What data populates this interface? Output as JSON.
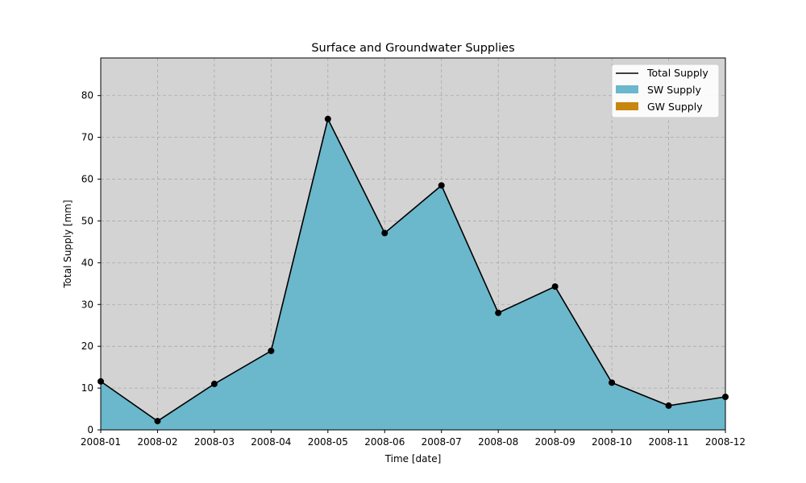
{
  "chart_data": {
    "type": "area",
    "title": "Surface and Groundwater Supplies",
    "xlabel": "Time [date]",
    "ylabel": "Total Supply [mm]",
    "x": [
      "2008-01",
      "2008-02",
      "2008-03",
      "2008-04",
      "2008-05",
      "2008-06",
      "2008-07",
      "2008-08",
      "2008-09",
      "2008-10",
      "2008-11",
      "2008-12"
    ],
    "xlim": [
      "2008-01",
      "2008-12"
    ],
    "ylim": [
      0,
      89
    ],
    "yticks": [
      0,
      10,
      20,
      30,
      40,
      50,
      60,
      70,
      80
    ],
    "grid": true,
    "legend_position": "top-right",
    "series": [
      {
        "name": "Total Supply",
        "kind": "line",
        "color": "#000000",
        "values": [
          11.6,
          2.1,
          11.0,
          18.9,
          74.4,
          47.1,
          58.5,
          28.0,
          34.3,
          11.3,
          5.8,
          7.9
        ]
      },
      {
        "name": "SW Supply",
        "kind": "area",
        "color": "#6bb7cb",
        "values": [
          11.6,
          2.1,
          11.0,
          18.9,
          74.4,
          47.1,
          58.5,
          28.0,
          34.3,
          11.3,
          5.8,
          7.9
        ]
      },
      {
        "name": "GW Supply",
        "kind": "area",
        "color": "#c8860f",
        "values": [
          0,
          0,
          0,
          0,
          0,
          0,
          0,
          0,
          0,
          0,
          0,
          0
        ]
      }
    ],
    "colors": {
      "plot_background": "#d3d3d3",
      "grid": "#a9a9a9"
    }
  }
}
